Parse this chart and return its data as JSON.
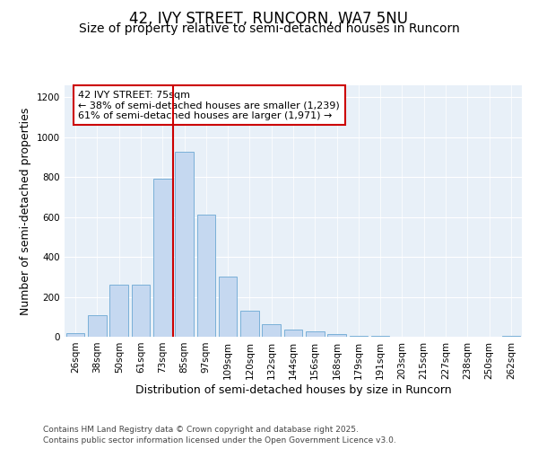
{
  "title1": "42, IVY STREET, RUNCORN, WA7 5NU",
  "title2": "Size of property relative to semi-detached houses in Runcorn",
  "xlabel": "Distribution of semi-detached houses by size in Runcorn",
  "ylabel": "Number of semi-detached properties",
  "categories": [
    "26sqm",
    "38sqm",
    "50sqm",
    "61sqm",
    "73sqm",
    "85sqm",
    "97sqm",
    "109sqm",
    "120sqm",
    "132sqm",
    "144sqm",
    "156sqm",
    "168sqm",
    "179sqm",
    "191sqm",
    "203sqm",
    "215sqm",
    "227sqm",
    "238sqm",
    "250sqm",
    "262sqm"
  ],
  "values": [
    18,
    110,
    260,
    260,
    790,
    925,
    610,
    300,
    130,
    62,
    35,
    28,
    12,
    5,
    3,
    2,
    1,
    1,
    0,
    0,
    5
  ],
  "bar_color": "#c5d8f0",
  "bar_edge_color": "#7ab0d8",
  "subject_label": "42 IVY STREET: 75sqm",
  "annotation_line1": "← 38% of semi-detached houses are smaller (1,239)",
  "annotation_line2": "61% of semi-detached houses are larger (1,971) →",
  "vline_color": "#cc0000",
  "annotation_box_edgecolor": "#cc0000",
  "ylim": [
    0,
    1260
  ],
  "yticks": [
    0,
    200,
    400,
    600,
    800,
    1000,
    1200
  ],
  "footer1": "Contains HM Land Registry data © Crown copyright and database right 2025.",
  "footer2": "Contains public sector information licensed under the Open Government Licence v3.0.",
  "bg_color": "#ffffff",
  "plot_bg_color": "#e8f0f8",
  "grid_color": "#ffffff",
  "title1_fontsize": 12,
  "title2_fontsize": 10,
  "axis_label_fontsize": 9,
  "tick_fontsize": 7.5,
  "footer_fontsize": 6.5,
  "annot_fontsize": 8,
  "vline_x": 4.5
}
